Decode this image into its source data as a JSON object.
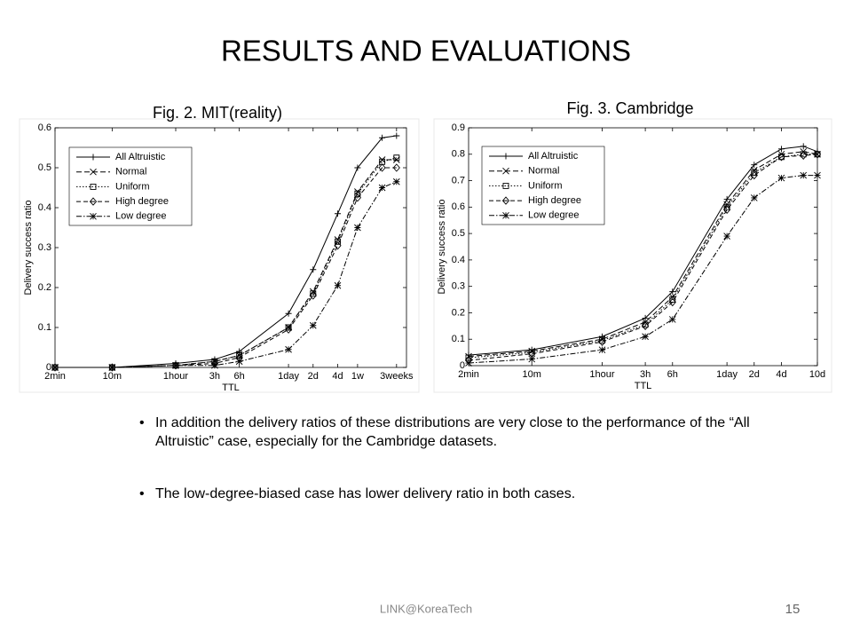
{
  "slide": {
    "title": "RESULTS AND EVALUATIONS",
    "bullets": [
      "In addition the delivery ratios of these distributions are very close to the performance of the “All Altruistic” case, especially for the Cambridge datasets.",
      "The low-degree-biased case has lower delivery ratio in both cases."
    ],
    "footer": "LINK@KoreaTech",
    "page_number": "15"
  },
  "chart_data": [
    {
      "type": "line",
      "title": "Fig. 2. MIT(reality)",
      "xlabel": "TTL",
      "ylabel": "Delivery success ratio",
      "xscale": "log",
      "legend": "upper left",
      "x": [
        2,
        10,
        60,
        180,
        360,
        1440,
        2880,
        5760,
        10080,
        20160,
        30240
      ],
      "xlim": [
        2,
        40000
      ],
      "xticks": [
        {
          "value": 2,
          "label": "2min"
        },
        {
          "value": 10,
          "label": "10m"
        },
        {
          "value": 60,
          "label": "1hour"
        },
        {
          "value": 180,
          "label": "3h"
        },
        {
          "value": 360,
          "label": "6h"
        },
        {
          "value": 1440,
          "label": "1day"
        },
        {
          "value": 2880,
          "label": "2d"
        },
        {
          "value": 5760,
          "label": "4d"
        },
        {
          "value": 10080,
          "label": "1w"
        },
        {
          "value": 30240,
          "label": "3weeks"
        }
      ],
      "ylim": [
        0,
        0.6
      ],
      "yticks": [
        0,
        0.1,
        0.2,
        0.3,
        0.4,
        0.5,
        0.6
      ],
      "series": [
        {
          "name": "All Altruistic",
          "color": "#000000",
          "dash": "none",
          "marker": "plus",
          "values": [
            0,
            0,
            0.01,
            0.02,
            0.04,
            0.135,
            0.245,
            0.385,
            0.5,
            0.575,
            0.58
          ]
        },
        {
          "name": "Normal",
          "color": "#000000",
          "dash": "6,3",
          "marker": "cross",
          "values": [
            0,
            0,
            0.005,
            0.015,
            0.03,
            0.1,
            0.19,
            0.32,
            0.44,
            0.52,
            0.52
          ]
        },
        {
          "name": "Uniform",
          "color": "#000000",
          "dash": "1.5,2",
          "marker": "square",
          "values": [
            0,
            0,
            0.005,
            0.015,
            0.03,
            0.1,
            0.185,
            0.315,
            0.435,
            0.515,
            0.525
          ]
        },
        {
          "name": "High degree",
          "color": "#000000",
          "dash": "5,3",
          "marker": "diamond",
          "values": [
            0,
            0,
            0.005,
            0.01,
            0.025,
            0.095,
            0.18,
            0.305,
            0.425,
            0.5,
            0.5
          ]
        },
        {
          "name": "Low degree",
          "color": "#000000",
          "dash": "6,2,1.5,2",
          "marker": "star",
          "values": [
            0,
            0,
            0.005,
            0.005,
            0.015,
            0.045,
            0.105,
            0.205,
            0.35,
            0.45,
            0.465
          ]
        }
      ]
    },
    {
      "type": "line",
      "title": "Fig. 3. Cambridge",
      "xlabel": "TTL",
      "ylabel": "Delivery success ratio",
      "xscale": "log",
      "legend": "upper left",
      "x": [
        2,
        10,
        60,
        180,
        360,
        1440,
        2880,
        5760,
        10080,
        14400
      ],
      "xlim": [
        2,
        14400
      ],
      "xticks": [
        {
          "value": 2,
          "label": "2min"
        },
        {
          "value": 10,
          "label": "10m"
        },
        {
          "value": 60,
          "label": "1hour"
        },
        {
          "value": 180,
          "label": "3h"
        },
        {
          "value": 360,
          "label": "6h"
        },
        {
          "value": 1440,
          "label": "1day"
        },
        {
          "value": 2880,
          "label": "2d"
        },
        {
          "value": 5760,
          "label": "4d"
        },
        {
          "value": 14400,
          "label": "10d"
        }
      ],
      "ylim": [
        0,
        0.9
      ],
      "yticks": [
        0,
        0.1,
        0.2,
        0.3,
        0.4,
        0.5,
        0.6,
        0.7,
        0.8,
        0.9
      ],
      "series": [
        {
          "name": "All Altruistic",
          "color": "#000000",
          "dash": "none",
          "marker": "plus",
          "values": [
            0.04,
            0.06,
            0.11,
            0.18,
            0.28,
            0.63,
            0.76,
            0.82,
            0.83,
            0.81
          ]
        },
        {
          "name": "Normal",
          "color": "#000000",
          "dash": "6,3",
          "marker": "cross",
          "values": [
            0.035,
            0.055,
            0.1,
            0.165,
            0.26,
            0.61,
            0.74,
            0.8,
            0.81,
            0.8
          ]
        },
        {
          "name": "Uniform",
          "color": "#000000",
          "dash": "1.5,2",
          "marker": "square",
          "values": [
            0.03,
            0.05,
            0.095,
            0.155,
            0.25,
            0.6,
            0.73,
            0.79,
            0.8,
            0.8
          ]
        },
        {
          "name": "High degree",
          "color": "#000000",
          "dash": "5,3",
          "marker": "diamond",
          "values": [
            0.02,
            0.045,
            0.09,
            0.15,
            0.24,
            0.59,
            0.72,
            0.79,
            0.795,
            0.8
          ]
        },
        {
          "name": "Low degree",
          "color": "#000000",
          "dash": "6,2,1.5,2",
          "marker": "star",
          "values": [
            0.01,
            0.025,
            0.06,
            0.11,
            0.175,
            0.49,
            0.635,
            0.71,
            0.72,
            0.72
          ]
        }
      ]
    }
  ]
}
